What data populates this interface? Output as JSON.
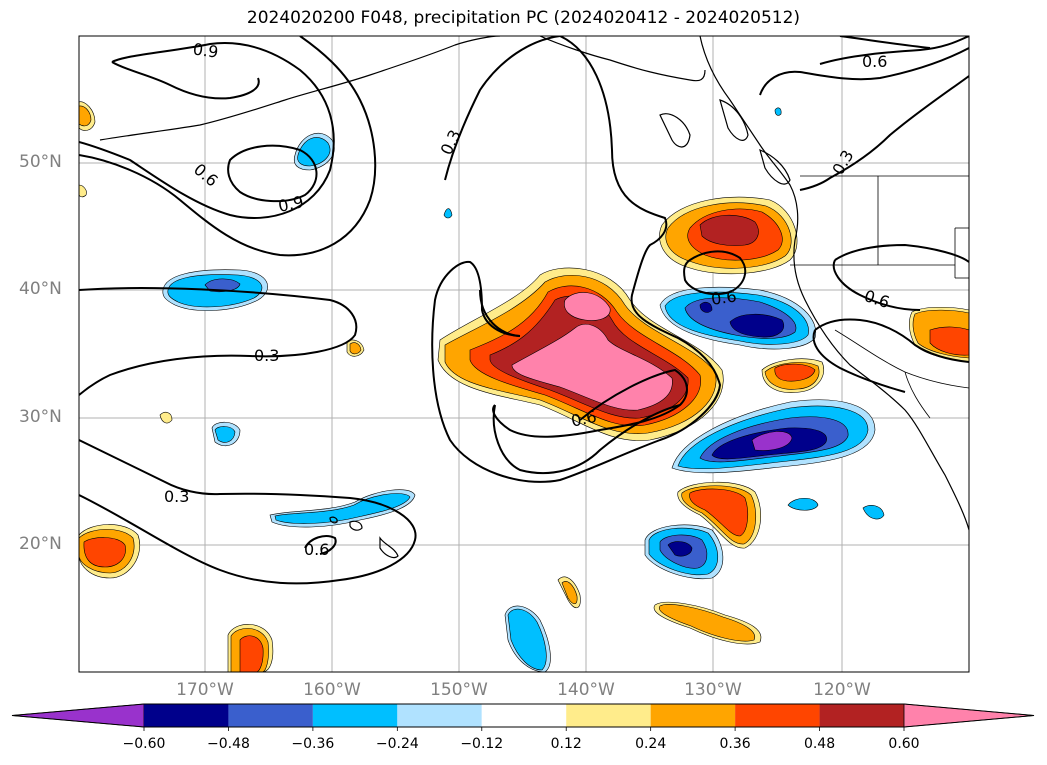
{
  "title": "2024020200 F048, precipitation PC (2024020412 - 2024020512)",
  "map": {
    "lat_labels": [
      "50°N",
      "40°N",
      "30°N",
      "20°N"
    ],
    "lon_labels": [
      "170°W",
      "160°W",
      "150°W",
      "140°W",
      "130°W",
      "120°W"
    ],
    "contour_labels": [
      "0.9",
      "0.9",
      "0.6",
      "0.3",
      "0.3",
      "0.3",
      "0.6",
      "0.6",
      "0.6",
      "0.6",
      "0.3",
      "0.6"
    ],
    "fill_colors": {
      "lt_m060": "#9932cc",
      "m060": "#00008b",
      "m048": "#3a5fcd",
      "m036": "#00bfff",
      "m024": "#b0e2ff",
      "p012": "#ffec8b",
      "p024": "#ffa500",
      "p036": "#ff4500",
      "p048": "#b22222",
      "gt_p060": "#ff82ab"
    }
  },
  "colorbar": {
    "ticks": [
      "−0.60",
      "−0.48",
      "−0.36",
      "−0.24",
      "−0.12",
      "0.12",
      "0.24",
      "0.36",
      "0.48",
      "0.60"
    ],
    "colors": [
      "#00008b",
      "#3a5fcd",
      "#00bfff",
      "#b0e2ff",
      "#ffffff",
      "#ffec8b",
      "#ffa500",
      "#ff4500",
      "#b22222"
    ],
    "extend_low": "#9932cc",
    "extend_high": "#ff82ab"
  }
}
